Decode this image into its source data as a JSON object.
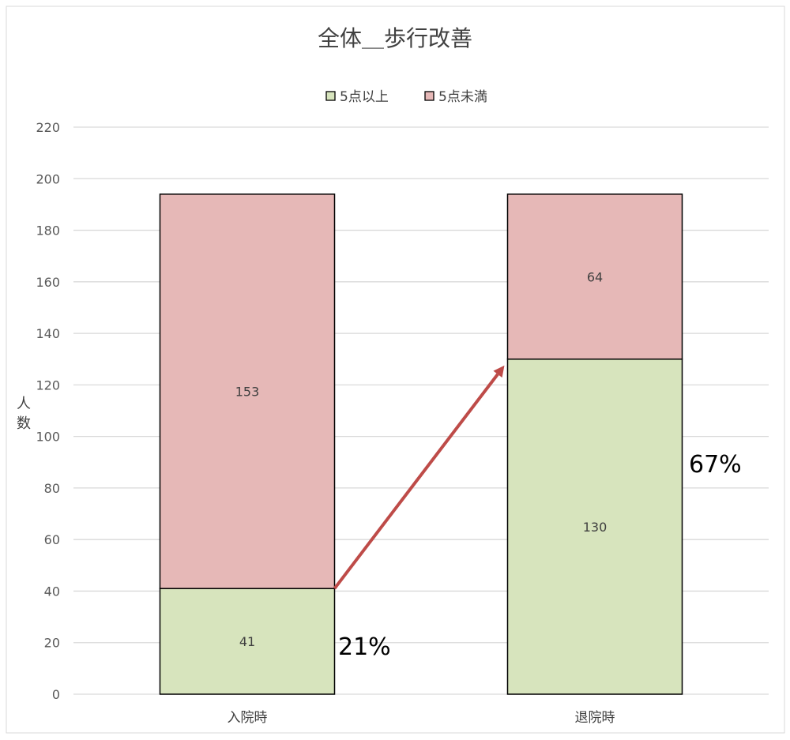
{
  "chart_data": {
    "type": "stacked-bar",
    "title": "全体＿歩行改善",
    "ylabel": "人数",
    "xlabel": "",
    "ylim": [
      0,
      220
    ],
    "yticks": [
      0,
      20,
      40,
      60,
      80,
      100,
      120,
      140,
      160,
      180,
      200,
      220
    ],
    "grid": true,
    "legend_position": "top",
    "categories": [
      "入院時",
      "退院時"
    ],
    "series": [
      {
        "name": "5点以上",
        "values": [
          41,
          130
        ],
        "color": "#d7e4bd"
      },
      {
        "name": "5点未満",
        "values": [
          153,
          64
        ],
        "color": "#e6b8b7"
      }
    ],
    "annotations": [
      {
        "text": "21%",
        "category": "入院時"
      },
      {
        "text": "67%",
        "category": "退院時"
      }
    ],
    "arrow": {
      "from": {
        "category": "入院時",
        "value": 41
      },
      "to": {
        "category": "退院時",
        "value": 130
      },
      "color": "#be4b48"
    }
  }
}
